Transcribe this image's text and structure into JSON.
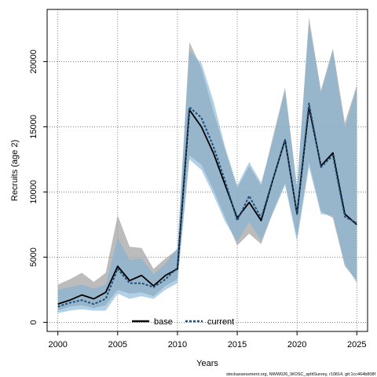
{
  "chart_data": {
    "type": "line",
    "title": "",
    "xlabel": "Years",
    "ylabel": "Recruits (age 2)",
    "xlim": [
      1999.1,
      2025.9
    ],
    "ylim": [
      -700,
      24000
    ],
    "x_ticks": [
      2000,
      2005,
      2010,
      2015,
      2020,
      2025
    ],
    "y_ticks": [
      0,
      5000,
      10000,
      15000,
      20000
    ],
    "grid": true,
    "legend_position": "bottom",
    "x": [
      2000,
      2001,
      2002,
      2003,
      2004,
      2005,
      2006,
      2007,
      2008,
      2009,
      2010,
      2011,
      2012,
      2013,
      2014,
      2015,
      2016,
      2017,
      2018,
      2019,
      2020,
      2021,
      2022,
      2023,
      2024,
      2025
    ],
    "series": [
      {
        "name": "base",
        "color": "#000000",
        "band_color": "#a6a6a6",
        "values": [
          1400,
          1700,
          2100,
          1800,
          2300,
          4300,
          3200,
          3600,
          2800,
          3600,
          4100,
          16300,
          15000,
          13000,
          10500,
          8000,
          9200,
          7800,
          11000,
          14000,
          8300,
          16500,
          12000,
          13000,
          8300,
          7500
        ],
        "lower": [
          900,
          1200,
          1300,
          1100,
          1300,
          2500,
          2200,
          2300,
          2000,
          2800,
          3300,
          12800,
          12100,
          10200,
          8000,
          5900,
          6800,
          6000,
          8500,
          10700,
          6500,
          12300,
          8500,
          8000,
          4300,
          3200
        ],
        "upper": [
          2900,
          3300,
          3800,
          3100,
          3800,
          8200,
          5800,
          5700,
          4100,
          4900,
          5600,
          21500,
          19500,
          16200,
          13200,
          10300,
          12000,
          10500,
          14300,
          18000,
          10300,
          23400,
          17800,
          21000,
          15300,
          18200
        ]
      },
      {
        "name": "current",
        "color": "#1f4e79",
        "band_color": "#7fb3d5",
        "values": [
          1200,
          1500,
          1700,
          1400,
          1800,
          4100,
          3000,
          3000,
          2700,
          3300,
          4200,
          16500,
          15700,
          13500,
          10800,
          7800,
          9700,
          8000,
          11000,
          14000,
          8300,
          16800,
          11900,
          12800,
          8100,
          7600
        ],
        "lower": [
          700,
          900,
          1000,
          900,
          900,
          2200,
          1800,
          2000,
          1800,
          2500,
          3000,
          12500,
          11700,
          9800,
          7700,
          6200,
          7700,
          6300,
          8400,
          10500,
          6200,
          11900,
          8300,
          8200,
          4500,
          3000
        ],
        "upper": [
          2500,
          2700,
          2900,
          2600,
          2900,
          6500,
          4800,
          4900,
          3700,
          4500,
          5700,
          20800,
          19900,
          17000,
          13400,
          10500,
          12300,
          10700,
          14000,
          17800,
          10400,
          22900,
          17600,
          20800,
          14900,
          18000
        ]
      }
    ],
    "footnote": "stockassessment.org, NWW026_WOSC_splitSurvey, r10814, git:1cc464b808f"
  }
}
